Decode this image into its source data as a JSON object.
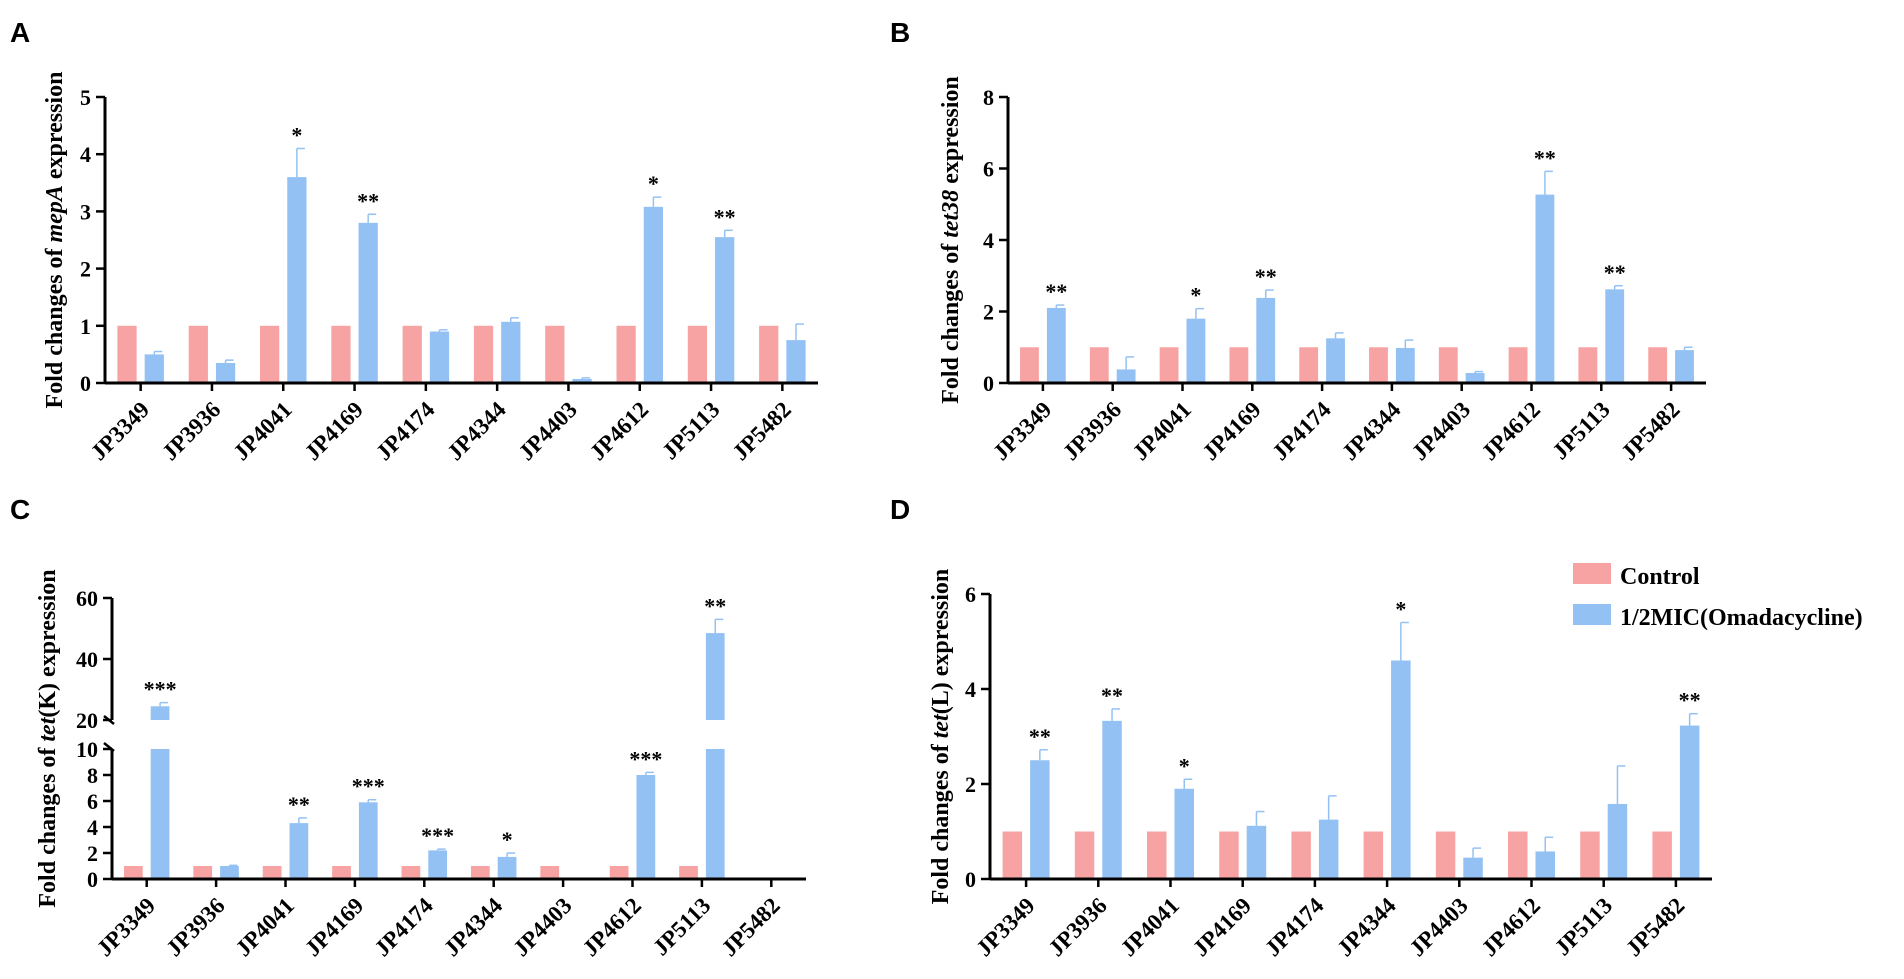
{
  "chart_data": [
    {
      "panel_label": "A",
      "type": "bar",
      "ylabel_prefix": "Fold changes of ",
      "ylabel_gene": "mepA",
      "ylabel_suffix": " expression",
      "categories": [
        "JP3349",
        "JP3936",
        "JP4041",
        "JP4169",
        "JP4174",
        "JP4344",
        "JP4403",
        "JP4612",
        "JP5113",
        "JP5482"
      ],
      "ylim": [
        0,
        5
      ],
      "yticks": [
        "0",
        "1",
        "2",
        "3",
        "4",
        "5"
      ],
      "series": [
        {
          "name": "Control",
          "values": [
            1,
            1,
            1,
            1,
            1,
            1,
            1,
            1,
            1,
            1
          ],
          "errors": [
            0,
            0,
            0,
            0,
            0,
            0,
            0,
            0,
            0,
            0
          ]
        },
        {
          "name": "1/2MIC(Omadacycline)",
          "values": [
            0.5,
            0.35,
            3.6,
            2.8,
            0.9,
            1.07,
            0.07,
            3.08,
            2.55,
            0.75
          ],
          "errors": [
            0.05,
            0.05,
            0.5,
            0.15,
            0.03,
            0.07,
            0.02,
            0.17,
            0.12,
            0.28
          ]
        }
      ],
      "significance": [
        "",
        "",
        "*",
        "**",
        "",
        "",
        "",
        "*",
        "**",
        ""
      ]
    },
    {
      "panel_label": "B",
      "type": "bar",
      "ylabel_prefix": "Fold changes of ",
      "ylabel_gene": "tet38",
      "ylabel_suffix": " expression",
      "categories": [
        "JP3349",
        "JP3936",
        "JP4041",
        "JP4169",
        "JP4174",
        "JP4344",
        "JP4403",
        "JP4612",
        "JP5113",
        "JP5482"
      ],
      "ylim": [
        0,
        8
      ],
      "yticks": [
        "0",
        "2",
        "4",
        "6",
        "8"
      ],
      "series": [
        {
          "name": "Control",
          "values": [
            1,
            1,
            1,
            1,
            1,
            1,
            1,
            1,
            1,
            1
          ],
          "errors": [
            0,
            0,
            0,
            0,
            0,
            0,
            0,
            0,
            0,
            0
          ]
        },
        {
          "name": "1/2MIC(Omadacycline)",
          "values": [
            2.1,
            0.38,
            1.8,
            2.38,
            1.25,
            0.98,
            0.28,
            5.27,
            2.62,
            0.92
          ],
          "errors": [
            0.08,
            0.35,
            0.28,
            0.22,
            0.15,
            0.22,
            0.04,
            0.65,
            0.1,
            0.08
          ]
        }
      ],
      "significance": [
        "**",
        "",
        "*",
        "**",
        "",
        "",
        "",
        "**",
        "**",
        ""
      ]
    },
    {
      "panel_label": "C",
      "type": "bar",
      "ylabel_prefix": "Fold changes of ",
      "ylabel_gene": "tet",
      "ylabel_suffix": "(K) expression",
      "categories": [
        "JP3349",
        "JP3936",
        "JP4041",
        "JP4169",
        "JP4174",
        "JP4344",
        "JP4403",
        "JP4612",
        "JP5113",
        "JP5482"
      ],
      "ylim_lower": [
        0,
        10
      ],
      "ylim_upper": [
        20,
        60
      ],
      "yticks_lower": [
        "0",
        "2",
        "4",
        "6",
        "8",
        "10"
      ],
      "yticks_upper": [
        "20",
        "40",
        "60"
      ],
      "series": [
        {
          "name": "Control",
          "values": [
            1,
            1,
            1,
            1,
            1,
            1,
            1,
            1,
            1,
            0
          ],
          "errors": [
            0,
            0,
            0,
            0,
            0,
            0,
            0,
            0,
            0,
            0
          ]
        },
        {
          "name": "1/2MIC(Omadacycline)",
          "values": [
            24.5,
            1.0,
            4.3,
            5.9,
            2.2,
            1.7,
            0,
            8.0,
            48.5,
            0
          ],
          "errors": [
            1.2,
            0.05,
            0.4,
            0.2,
            0.1,
            0.3,
            0,
            0.2,
            4.5,
            0
          ]
        }
      ],
      "significance": [
        "***",
        "",
        "**",
        "***",
        "***",
        "*",
        "",
        "***",
        "**",
        ""
      ]
    },
    {
      "panel_label": "D",
      "type": "bar",
      "ylabel_prefix": "Fold changes of ",
      "ylabel_gene": "tet",
      "ylabel_suffix": "(L) expression",
      "categories": [
        "JP3349",
        "JP3936",
        "JP4041",
        "JP4169",
        "JP4174",
        "JP4344",
        "JP4403",
        "JP4612",
        "JP5113",
        "JP5482"
      ],
      "ylim": [
        0,
        6
      ],
      "yticks": [
        "0",
        "2",
        "4",
        "6"
      ],
      "series": [
        {
          "name": "Control",
          "values": [
            1,
            1,
            1,
            1,
            1,
            1,
            1,
            1,
            1,
            1
          ],
          "errors": [
            0,
            0,
            0,
            0,
            0,
            0,
            0,
            0,
            0,
            0
          ]
        },
        {
          "name": "1/2MIC(Omadacycline)",
          "values": [
            2.5,
            3.33,
            1.9,
            1.12,
            1.25,
            4.6,
            0.45,
            0.58,
            1.58,
            3.23
          ],
          "errors": [
            0.22,
            0.25,
            0.2,
            0.3,
            0.5,
            0.8,
            0.2,
            0.3,
            0.8,
            0.25
          ]
        }
      ],
      "significance": [
        "**",
        "**",
        "*",
        "",
        "",
        "*",
        "",
        "",
        "",
        "**"
      ]
    }
  ],
  "legend": {
    "items": [
      {
        "label": "Control",
        "color": "#f8a3a3"
      },
      {
        "label": "1/2MIC(Omadacycline)",
        "color": "#94c1f3"
      }
    ]
  }
}
